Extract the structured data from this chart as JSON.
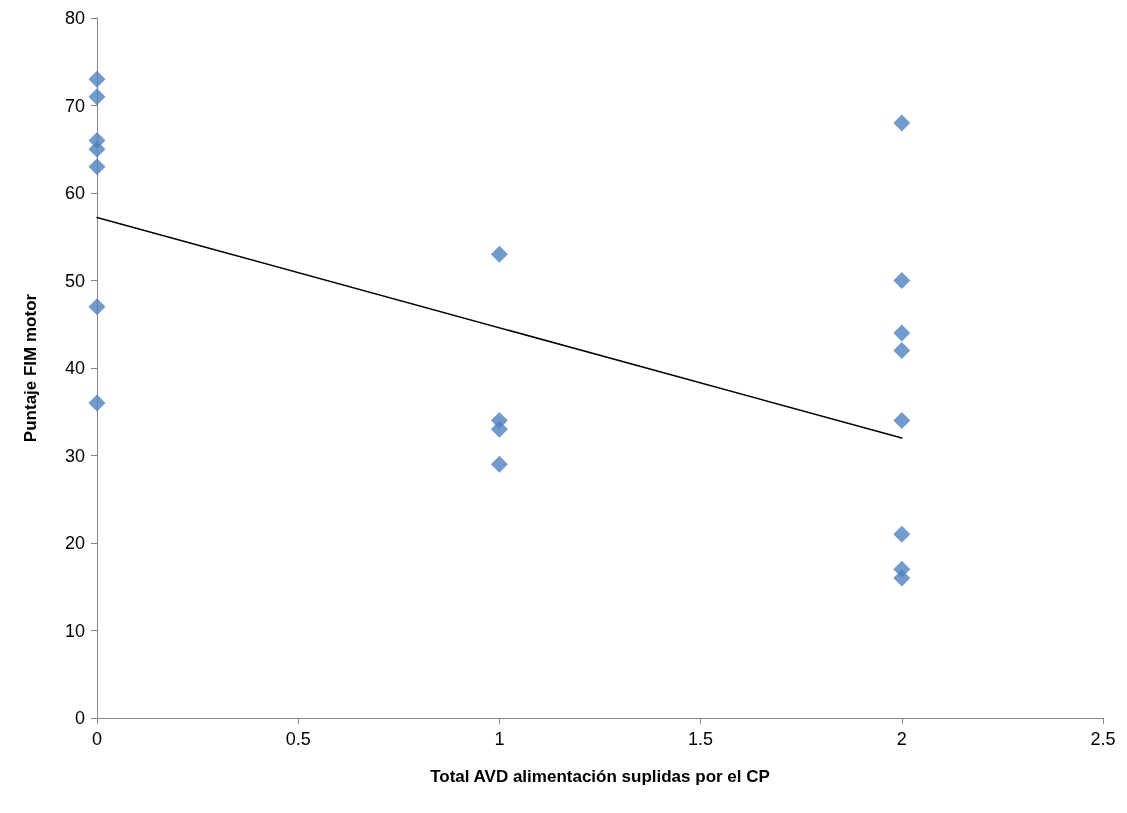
{
  "chart_data": {
    "type": "scatter",
    "xlabel": "Total AVD alimentación suplidas por el CP",
    "ylabel": "Puntaje FIM motor",
    "xlim": [
      0,
      2.5
    ],
    "xticks": [
      0,
      0.5,
      1,
      1.5,
      2,
      2.5
    ],
    "ylim": [
      0,
      80
    ],
    "yticks": [
      0,
      10,
      20,
      30,
      40,
      50,
      60,
      70,
      80
    ],
    "marker": "diamond",
    "series": [
      {
        "color": "#4f81bd",
        "x": [
          0,
          0,
          0,
          0,
          0,
          0,
          0,
          1,
          1,
          1,
          1,
          2,
          2,
          2,
          2,
          2,
          2,
          2,
          2
        ],
        "values": [
          73,
          71,
          66,
          65,
          63,
          47,
          36,
          53,
          34,
          33,
          29,
          68,
          50,
          44,
          42,
          34,
          21,
          17,
          16
        ]
      },
      {
        "type": "line",
        "marker": "none",
        "color": "#000000",
        "x": [
          0,
          2
        ],
        "values": [
          57.2,
          32
        ]
      }
    ]
  }
}
